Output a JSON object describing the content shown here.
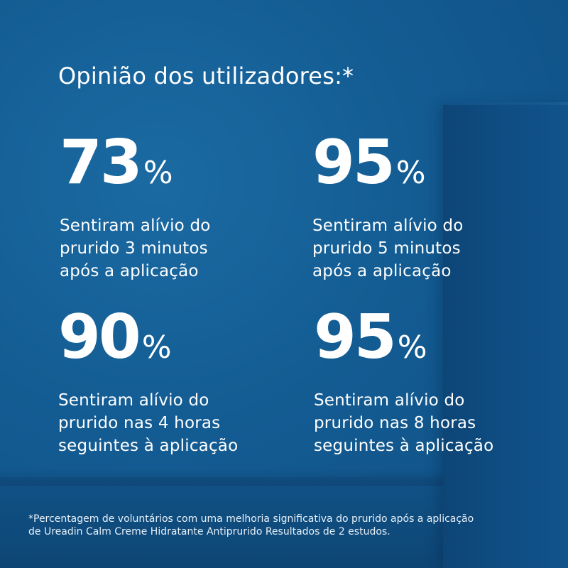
{
  "heading": "Opinião dos utilizadores:*",
  "stats": [
    {
      "number": "73",
      "unit": "%",
      "description": [
        "Sentiram alívio do",
        "prurido 3 minutos",
        "após a aplicação"
      ]
    },
    {
      "number": "95",
      "unit": "%",
      "description": [
        "Sentiram alívio do",
        "prurido 5 minutos",
        "após a aplicação"
      ]
    },
    {
      "number": "90",
      "unit": "%",
      "description": [
        "Sentiram alívio do",
        "prurido nas 4 horas",
        "seguintes à aplicação"
      ]
    },
    {
      "number": "95",
      "unit": "%",
      "description": [
        "Sentiram alívio do",
        "prurido nas 8 horas",
        "seguintes à aplicação"
      ]
    }
  ],
  "footnote": [
    "*Percentagem de voluntários com uma melhoria significativa do prurido após a aplicação",
    "de Ureadin Calm Creme Hidratante Antiprurido Resultados de 2 estudos."
  ],
  "colors": {
    "background": "#135c93",
    "text": "#ffffff"
  }
}
